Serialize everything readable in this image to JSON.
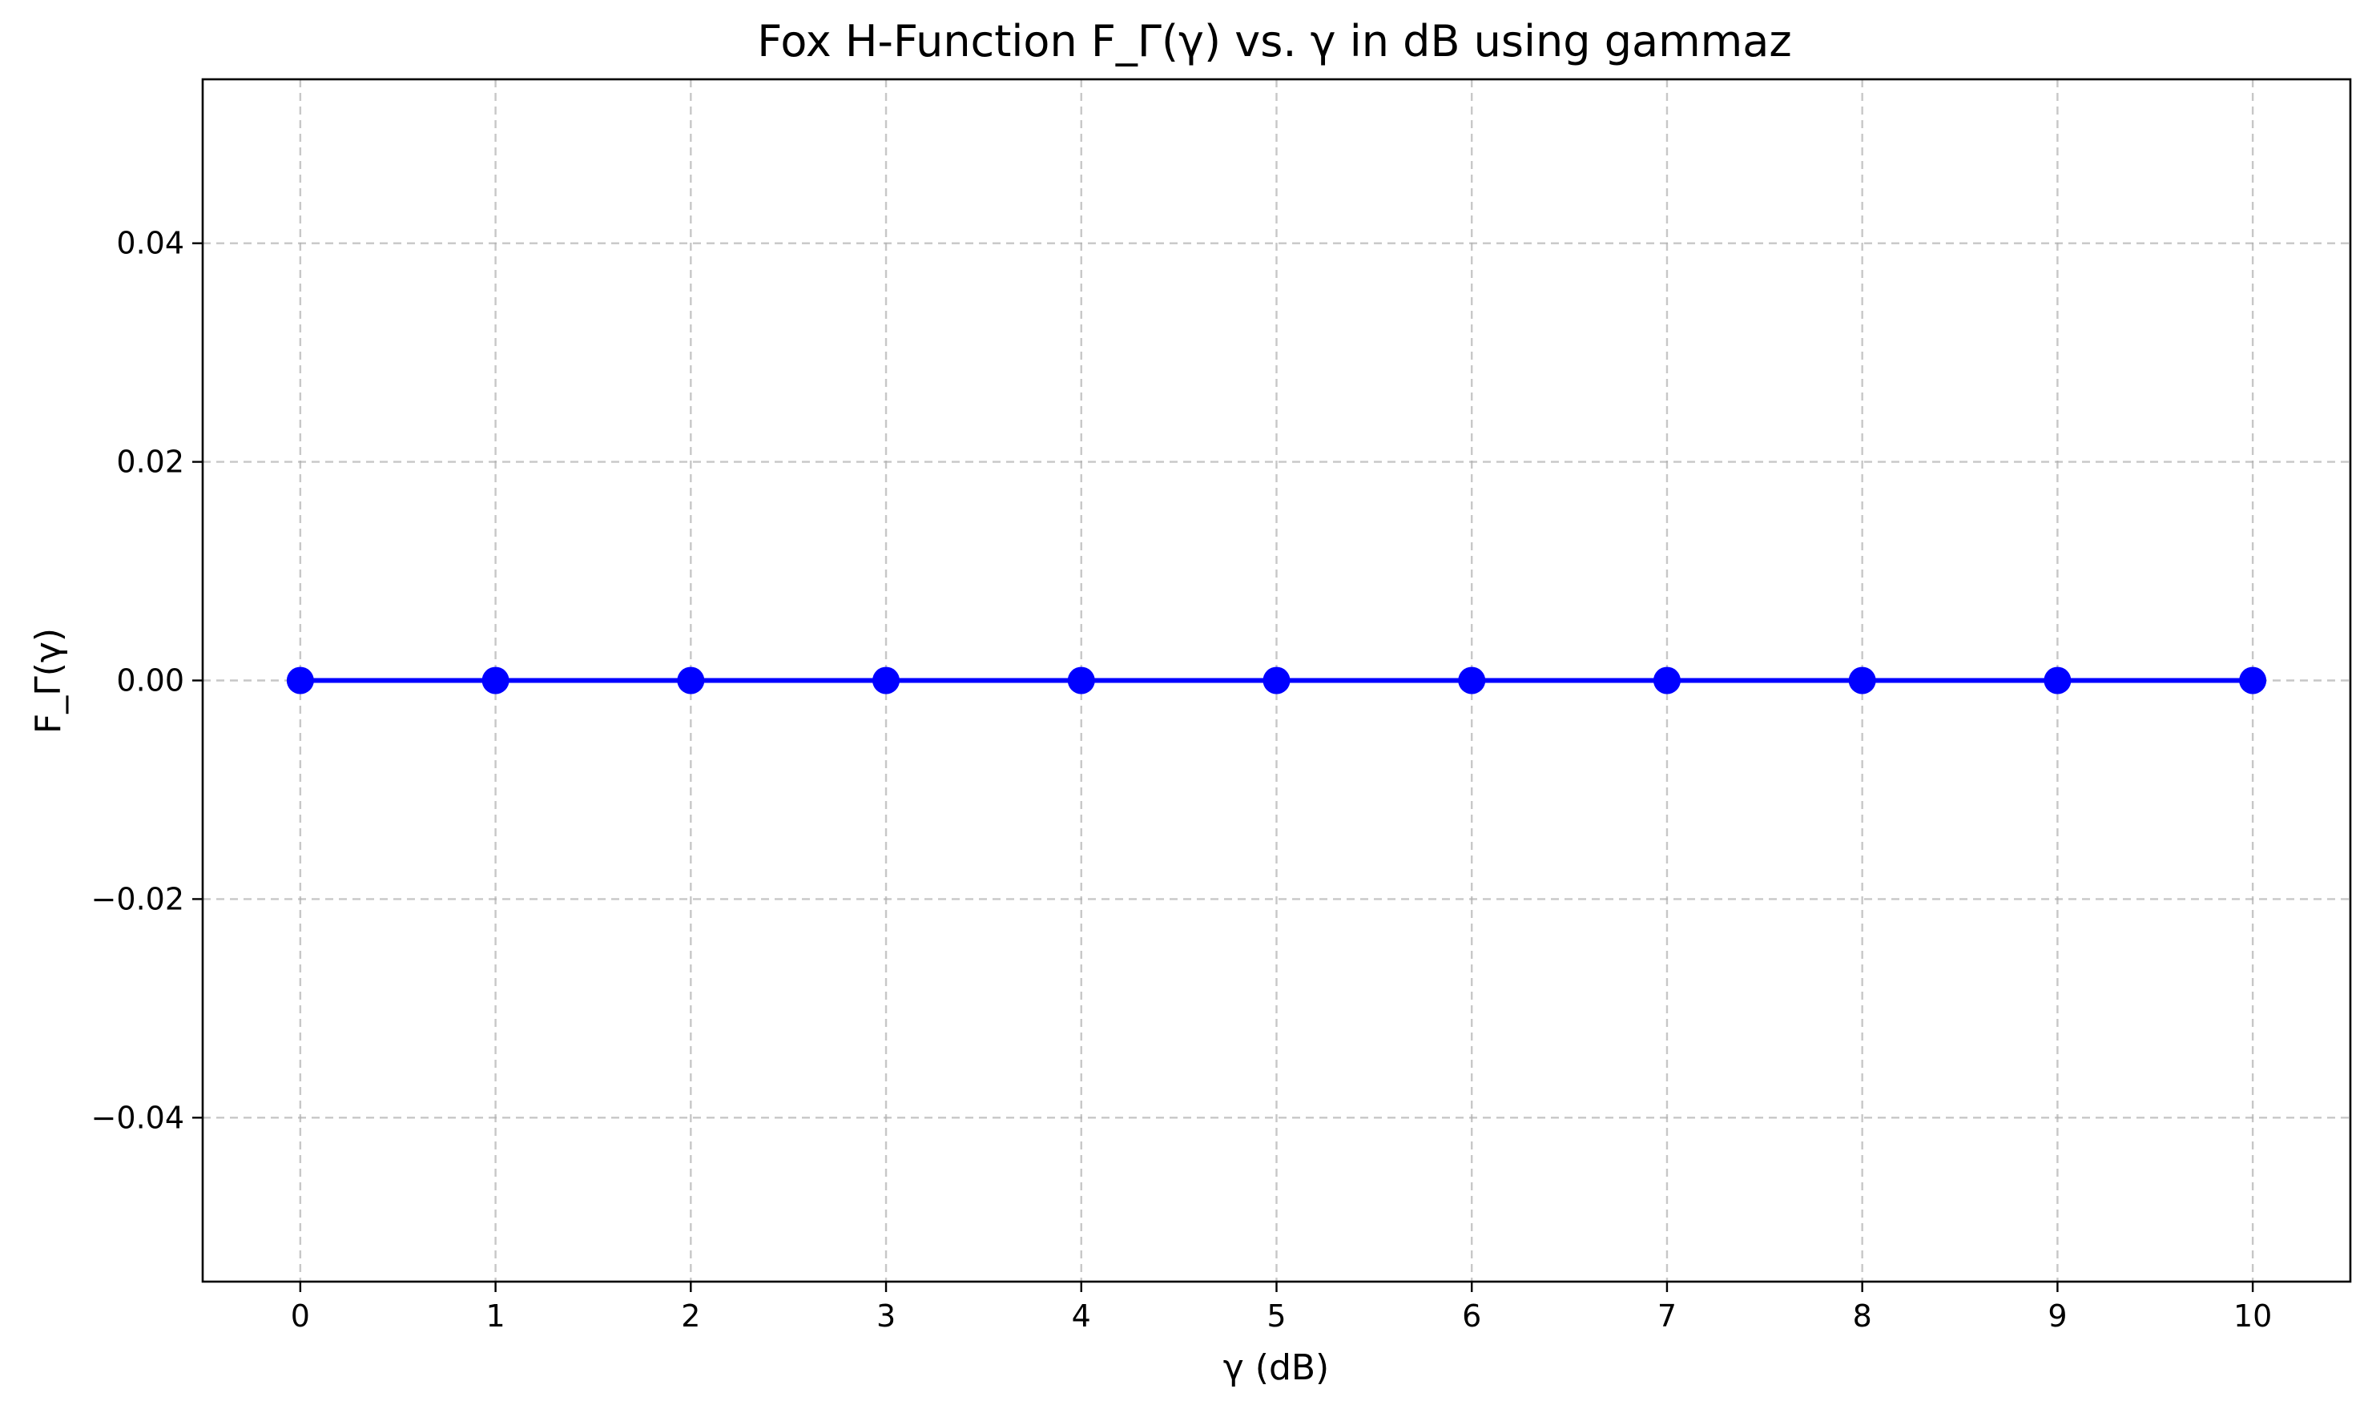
{
  "chart_data": {
    "type": "line",
    "title": "Fox H-Function F_Γ(γ) vs. γ in dB using gammaz",
    "xlabel": "γ (dB)",
    "ylabel": "F_Γ(γ)",
    "xlim": [
      -0.5,
      10.5
    ],
    "ylim": [
      -0.055,
      0.055
    ],
    "x_ticks": [
      0,
      1,
      2,
      3,
      4,
      5,
      6,
      7,
      8,
      9,
      10
    ],
    "x_tick_labels": [
      "0",
      "1",
      "2",
      "3",
      "4",
      "5",
      "6",
      "7",
      "8",
      "9",
      "10"
    ],
    "y_ticks": [
      -0.04,
      -0.02,
      0.0,
      0.02,
      0.04
    ],
    "y_tick_labels": [
      "−0.04",
      "−0.02",
      "0.00",
      "0.02",
      "0.04"
    ],
    "grid": true,
    "grid_style": "dashed",
    "legend": false,
    "series": [
      {
        "color": "#0000ff",
        "marker": "circle",
        "x": [
          0,
          1,
          2,
          3,
          4,
          5,
          6,
          7,
          8,
          9,
          10
        ],
        "y": [
          0,
          0,
          0,
          0,
          0,
          0,
          0,
          0,
          0,
          0,
          0
        ]
      }
    ]
  }
}
